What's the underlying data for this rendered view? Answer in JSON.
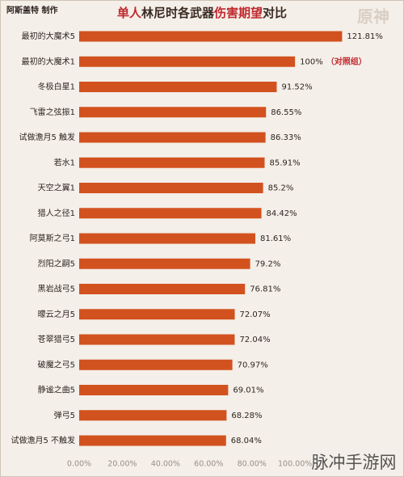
{
  "chart_data": {
    "type": "barh",
    "credit": "阿斯盖特 制作",
    "title_parts": [
      {
        "text": "单人",
        "color": "#c0282d"
      },
      {
        "text": "林尼时各武器",
        "color": "#3a2a22"
      },
      {
        "text": "伤害期望",
        "color": "#c0282d"
      },
      {
        "text": "对比",
        "color": "#3a2a22"
      }
    ],
    "logo": "原神",
    "watermark": "脉冲手游网",
    "categories": [
      "最初的大魔术5",
      "最初的大魔术1",
      "冬极白星1",
      "飞雷之弦振1",
      "试做澹月5 触发",
      "若水1",
      "天空之翼1",
      "猎人之径1",
      "阿莫斯之弓1",
      "烈阳之嗣5",
      "黑岩战弓5",
      "曚云之月5",
      "苍翠猎弓5",
      "破魔之弓5",
      "静谧之曲5",
      "弹弓5",
      "试做澹月5 不触发"
    ],
    "values": [
      121.81,
      100,
      91.52,
      86.55,
      86.33,
      85.91,
      85.2,
      84.42,
      81.61,
      79.2,
      76.81,
      72.07,
      72.04,
      70.97,
      69.01,
      68.28,
      68.04
    ],
    "value_labels": [
      "121.81%",
      "100%",
      "91.52%",
      "86.55%",
      "86.33%",
      "85.91%",
      "85.2%",
      "84.42%",
      "81.61%",
      "79.2%",
      "76.81%",
      "72.07%",
      "72.04%",
      "70.97%",
      "69.01%",
      "68.28%",
      "68.04%"
    ],
    "annotations": [
      {
        "category": "最初的大魔术1",
        "text": "（对照组）",
        "color": "#c0282d"
      }
    ],
    "color": "#d2521f",
    "xlim": [
      0,
      140
    ],
    "xticks": [
      {
        "value": 0,
        "label": "0.00%"
      },
      {
        "value": 20,
        "label": "20.00%"
      },
      {
        "value": 40,
        "label": "40.00%"
      },
      {
        "value": 60,
        "label": "60.00%"
      },
      {
        "value": 80,
        "label": "80.00%"
      },
      {
        "value": 100,
        "label": "100.00%"
      }
    ],
    "grid": false
  }
}
